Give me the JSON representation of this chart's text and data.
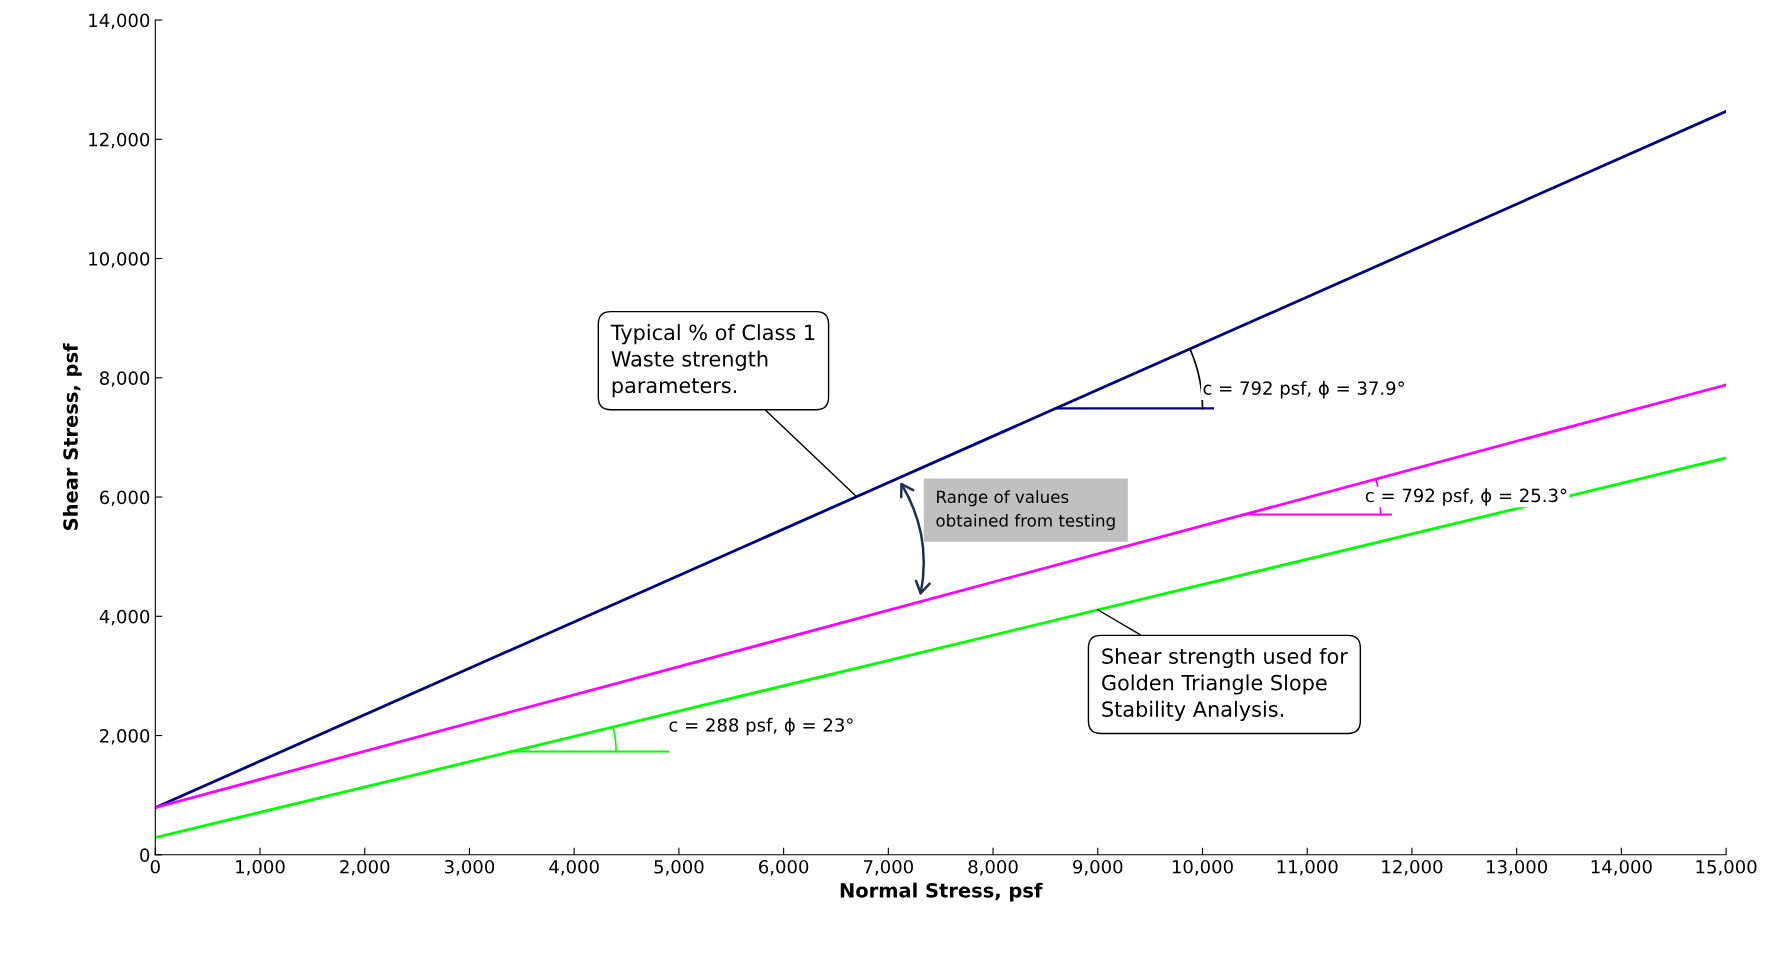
{
  "chart_data": {
    "type": "line",
    "xlabel": "Normal Stress, psf",
    "ylabel": "Shear Stress, psf",
    "xlim": [
      0,
      15000
    ],
    "ylim": [
      0,
      14000
    ],
    "xticks": [
      0,
      {
        "value": 1000,
        "label": "1,000"
      },
      {
        "value": 2000,
        "label": "2,000"
      },
      {
        "value": 3000,
        "label": "3,000"
      },
      {
        "value": 4000,
        "label": "4,000"
      },
      {
        "value": 5000,
        "label": "5,000"
      },
      {
        "value": 6000,
        "label": "6,000"
      },
      {
        "value": 7000,
        "label": "7,000"
      },
      {
        "value": 8000,
        "label": "8,000"
      },
      {
        "value": 9000,
        "label": "9,000"
      },
      {
        "value": 10000,
        "label": "10,000"
      },
      {
        "value": 11000,
        "label": "11,000"
      },
      {
        "value": 12000,
        "label": "12,000"
      },
      {
        "value": 13000,
        "label": "13,000"
      },
      {
        "value": 14000,
        "label": "14,000"
      },
      {
        "value": 15000,
        "label": "15,000"
      }
    ],
    "yticks": [
      0,
      {
        "value": 2000,
        "label": "2,000"
      },
      {
        "value": 4000,
        "label": "4,000"
      },
      {
        "value": 6000,
        "label": "6,000"
      },
      {
        "value": 8000,
        "label": "8,000"
      },
      {
        "value": 10000,
        "label": "10,000"
      },
      {
        "value": 12000,
        "label": "12,000"
      },
      {
        "value": 14000,
        "label": "14,000"
      }
    ],
    "x": [
      0,
      15000
    ],
    "series": [
      {
        "color": "#000080",
        "values": [
          792,
          12470
        ]
      },
      {
        "color": "#ff00ff",
        "values": [
          792,
          7882
        ]
      },
      {
        "color": "#00ff00",
        "values": [
          288,
          6655
        ]
      }
    ],
    "grid": false,
    "legend": false,
    "marker": "none",
    "line_style": "solid",
    "annotations": [
      {
        "text": "c = 792 psf, ϕ = 37.9°",
        "x": 8600,
        "y": 7487
      },
      {
        "text": "c = 792 psf, ϕ = 25.3°",
        "x": 10400,
        "y": 5708
      },
      {
        "text": "c = 288 psf, ϕ = 23°",
        "x": 3400,
        "y": 1731
      },
      {
        "text": "Typical % of Class 1\nWaste strength\nparameters.",
        "x": 6700,
        "y": 6000
      },
      {
        "text": "Shear strength used for\nGolden Triangle Slope\nStability Analysis.",
        "x": 9000,
        "y": 4110
      },
      "Range of values\nobtained from testing"
    ]
  }
}
